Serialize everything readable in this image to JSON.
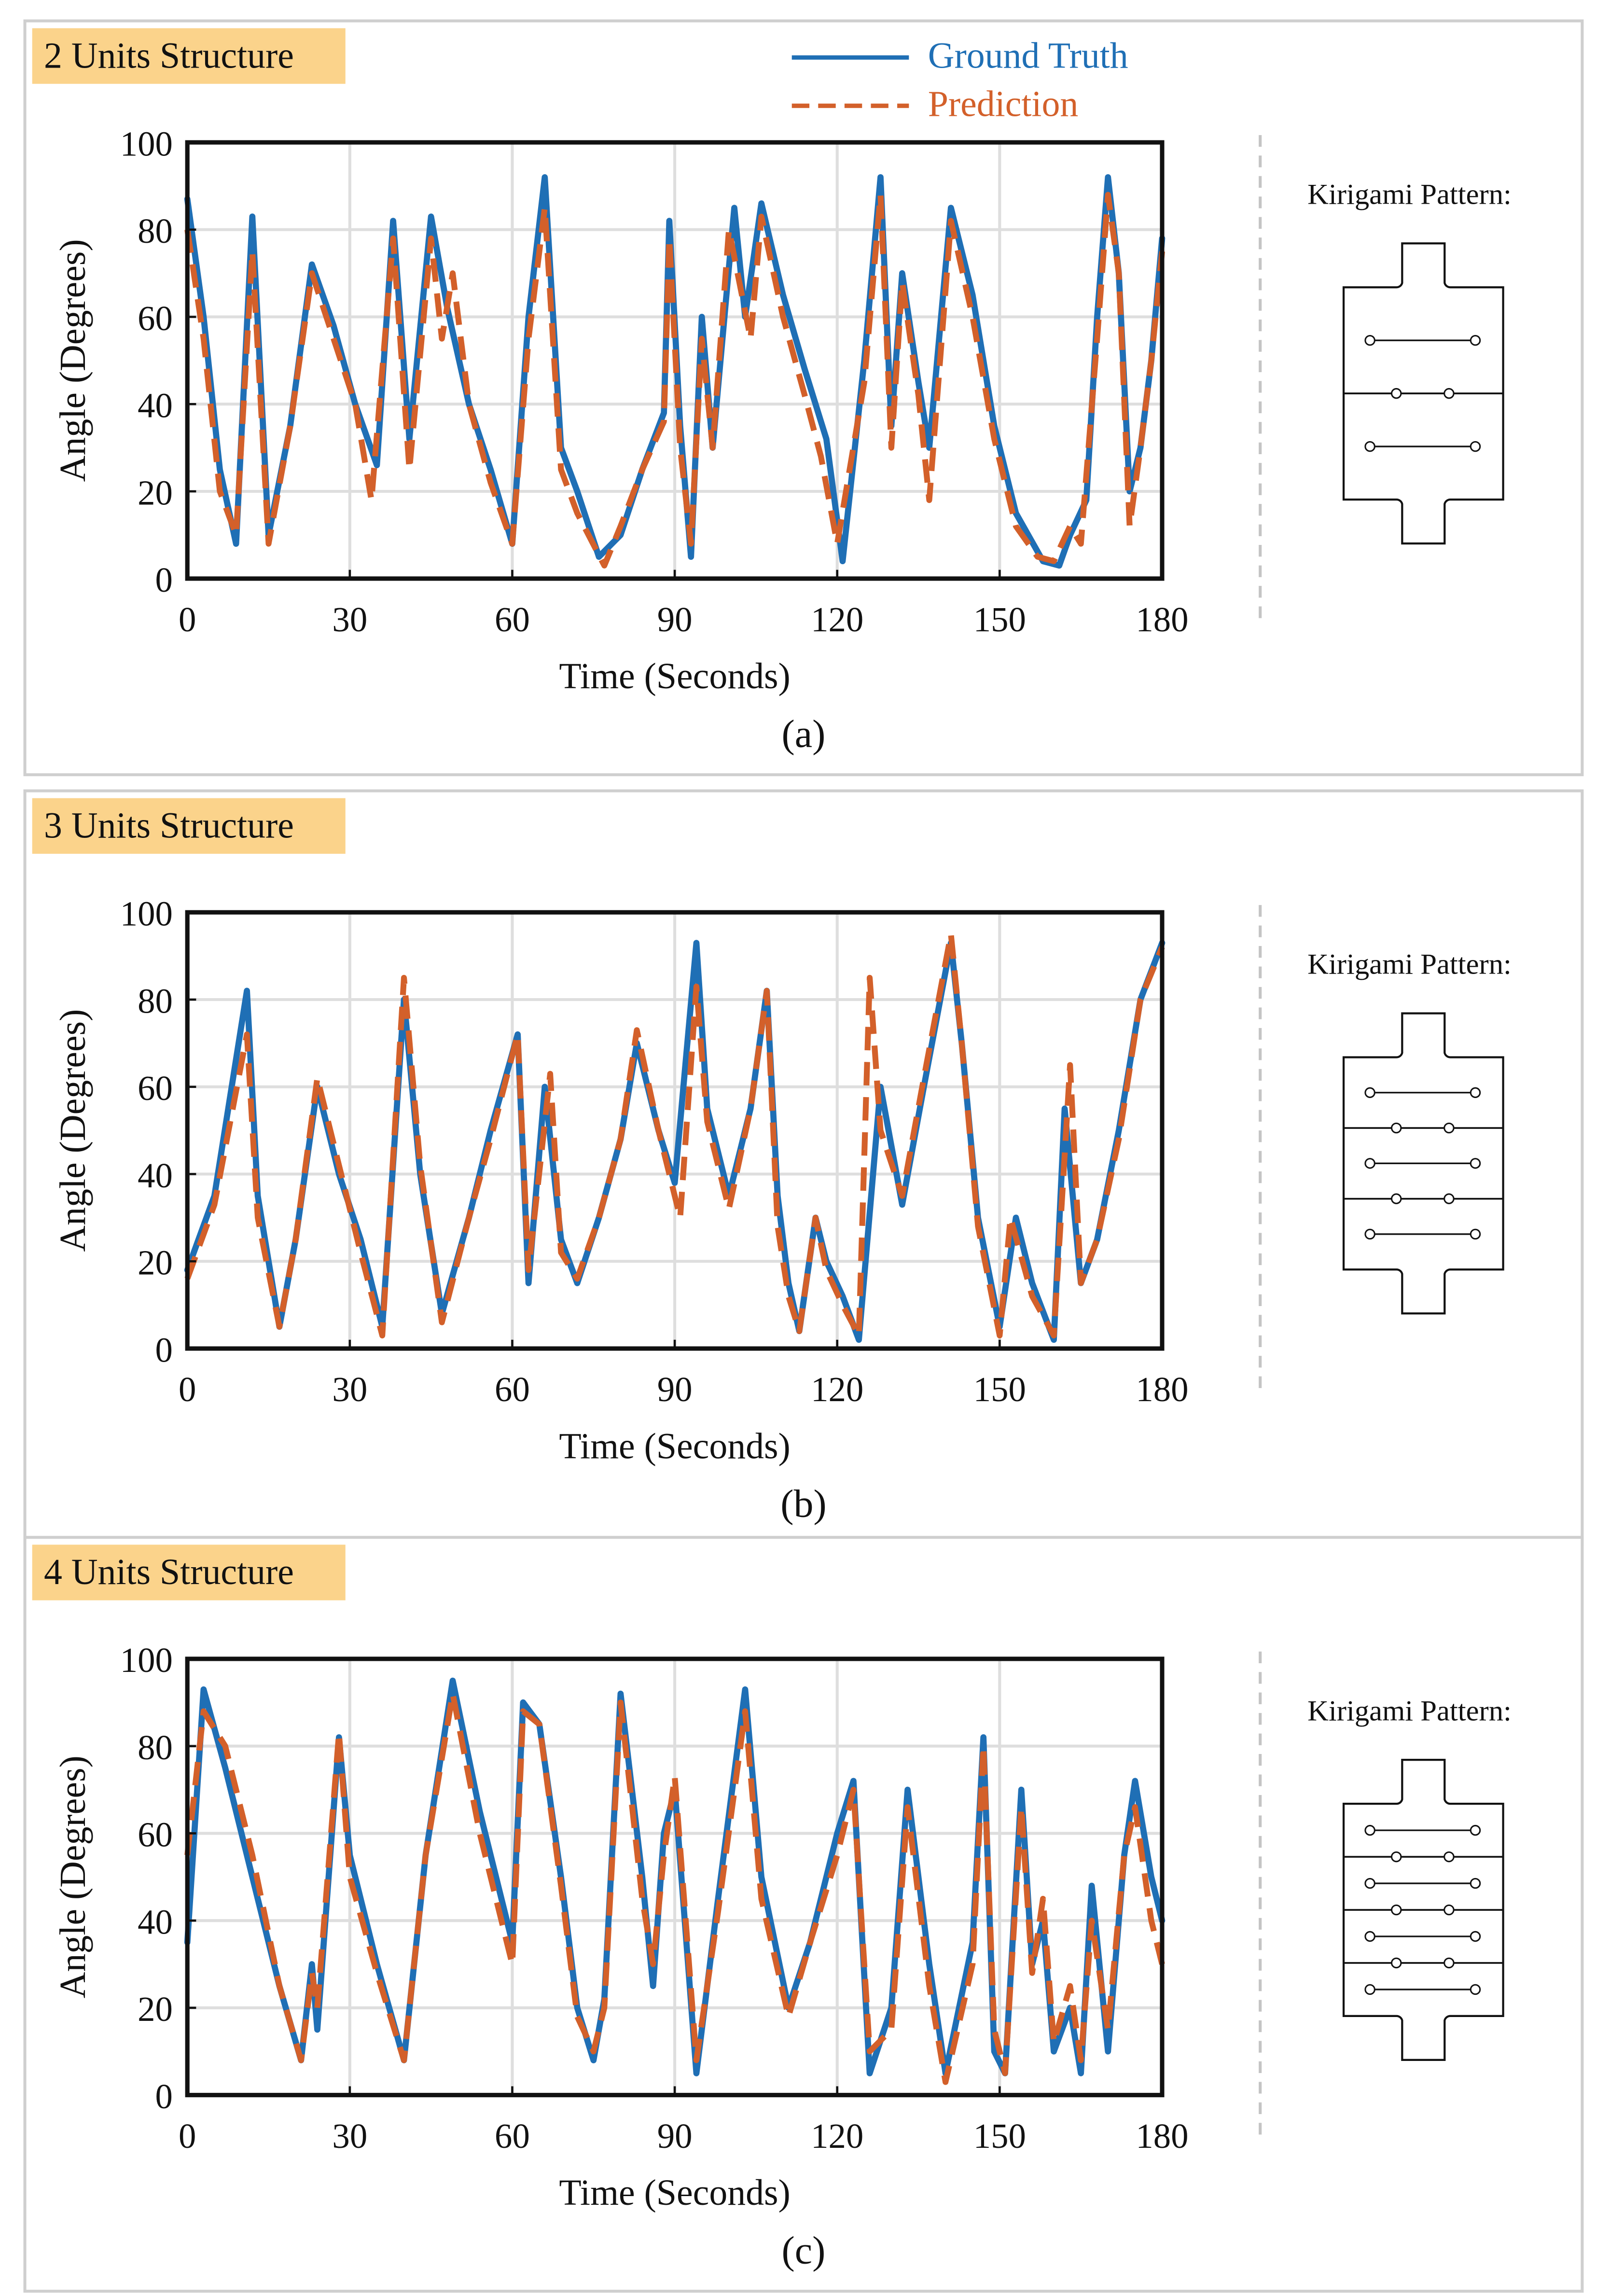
{
  "legend": {
    "ground_truth": "Ground Truth",
    "prediction": "Prediction",
    "ground_truth_color": "#1f6fb5",
    "prediction_color": "#d3602a"
  },
  "kirigami_label": "Kirigami Pattern:",
  "colors": {
    "tag_bg": "#fbd38b",
    "panel_border": "#cfcfcf",
    "grid": "#dedede"
  },
  "chart_data": [
    {
      "type": "line",
      "title": "2 Units Structure",
      "caption": "(a)",
      "xlabel": "Time (Seconds)",
      "ylabel": "Angle (Degrees)",
      "xlim": [
        0,
        180
      ],
      "ylim": [
        0,
        100
      ],
      "xticks": [
        0,
        30,
        60,
        90,
        120,
        150,
        180
      ],
      "yticks": [
        0,
        20,
        40,
        60,
        80,
        100
      ],
      "units": 2,
      "series": [
        {
          "name": "Ground Truth",
          "x": [
            0,
            3,
            6,
            9,
            12,
            15,
            19,
            23,
            27,
            31,
            35,
            38,
            41,
            45,
            48,
            52,
            56,
            60,
            63,
            66,
            69,
            72,
            76,
            80,
            84,
            88,
            89,
            91,
            93,
            95,
            97,
            101,
            103,
            106,
            110,
            114,
            118,
            121,
            125,
            128,
            130,
            132,
            135,
            137,
            141,
            145,
            149,
            153,
            158,
            161,
            163,
            166,
            168,
            170,
            172,
            174,
            176,
            178,
            180
          ],
          "y": [
            87,
            60,
            25,
            8,
            83,
            10,
            35,
            72,
            58,
            40,
            26,
            82,
            32,
            83,
            62,
            40,
            25,
            8,
            60,
            92,
            30,
            20,
            5,
            10,
            25,
            38,
            82,
            35,
            5,
            60,
            30,
            85,
            60,
            86,
            65,
            48,
            32,
            4,
            50,
            92,
            35,
            70,
            45,
            30,
            85,
            65,
            35,
            15,
            4,
            3,
            10,
            18,
            60,
            92,
            70,
            20,
            30,
            50,
            78
          ]
        },
        {
          "name": "Prediction",
          "x": [
            0,
            3,
            6,
            9,
            12,
            15,
            19,
            23,
            27,
            31,
            34,
            38,
            41,
            45,
            47,
            49,
            52,
            56,
            60,
            63,
            66,
            69,
            72,
            77,
            80,
            84,
            88,
            89,
            91,
            93,
            95,
            97,
            100,
            104,
            106,
            110,
            114,
            117,
            120,
            125,
            128,
            130,
            132,
            135,
            137,
            141,
            145,
            149,
            153,
            157,
            160,
            163,
            165,
            168,
            170,
            172,
            174,
            176,
            178,
            180
          ],
          "y": [
            80,
            55,
            20,
            10,
            75,
            8,
            35,
            70,
            55,
            40,
            18,
            78,
            25,
            78,
            55,
            70,
            40,
            22,
            8,
            55,
            85,
            25,
            15,
            3,
            12,
            25,
            36,
            78,
            30,
            8,
            55,
            30,
            80,
            55,
            83,
            60,
            42,
            28,
            8,
            45,
            88,
            30,
            68,
            42,
            18,
            82,
            60,
            32,
            12,
            5,
            4,
            12,
            8,
            55,
            88,
            70,
            12,
            30,
            50,
            75
          ]
        }
      ]
    },
    {
      "type": "line",
      "title": "3 Units Structure",
      "caption": "(b)",
      "xlabel": "Time (Seconds)",
      "ylabel": "Angle (Degrees)",
      "xlim": [
        0,
        180
      ],
      "ylim": [
        0,
        100
      ],
      "xticks": [
        0,
        30,
        60,
        90,
        120,
        150,
        180
      ],
      "yticks": [
        0,
        20,
        40,
        60,
        80,
        100
      ],
      "units": 3,
      "series": [
        {
          "name": "Ground Truth",
          "x": [
            0,
            5,
            11,
            13,
            17,
            20,
            24,
            28,
            32,
            36,
            40,
            43,
            47,
            52,
            56,
            61,
            63,
            66,
            69,
            72,
            76,
            80,
            83,
            87,
            90,
            94,
            96,
            100,
            104,
            107,
            109,
            111,
            113,
            116,
            118,
            121,
            124,
            128,
            132,
            136,
            141,
            143,
            146,
            150,
            153,
            156,
            160,
            162,
            165,
            168,
            172,
            176,
            180
          ],
          "y": [
            18,
            35,
            82,
            35,
            5,
            25,
            60,
            40,
            25,
            5,
            80,
            40,
            8,
            30,
            50,
            72,
            15,
            60,
            25,
            15,
            30,
            48,
            70,
            50,
            38,
            93,
            55,
            35,
            55,
            82,
            35,
            15,
            4,
            30,
            20,
            12,
            2,
            60,
            33,
            60,
            93,
            70,
            30,
            5,
            30,
            15,
            2,
            55,
            15,
            25,
            50,
            80,
            93
          ]
        },
        {
          "name": "Prediction",
          "x": [
            0,
            5,
            11,
            13,
            17,
            20,
            24,
            28,
            32,
            36,
            40,
            43,
            47,
            52,
            56,
            61,
            63,
            67,
            69,
            72,
            76,
            80,
            83,
            87,
            91,
            94,
            96,
            100,
            104,
            107,
            109,
            111,
            113,
            116,
            118,
            121,
            124,
            126,
            128,
            132,
            136,
            141,
            143,
            146,
            150,
            152,
            156,
            160,
            163,
            165,
            168,
            172,
            176,
            180
          ],
          "y": [
            16,
            33,
            72,
            30,
            5,
            25,
            62,
            42,
            22,
            3,
            85,
            42,
            6,
            30,
            48,
            72,
            18,
            63,
            22,
            16,
            30,
            48,
            73,
            50,
            30,
            83,
            52,
            32,
            55,
            82,
            28,
            12,
            4,
            30,
            18,
            10,
            3,
            85,
            50,
            35,
            62,
            95,
            70,
            28,
            3,
            30,
            12,
            3,
            65,
            15,
            25,
            48,
            80,
            92
          ]
        }
      ]
    },
    {
      "type": "line",
      "title": "4 Units Structure",
      "caption": "(c)",
      "xlabel": "Time (Seconds)",
      "ylabel": "Angle (Degrees)",
      "xlim": [
        0,
        180
      ],
      "ylim": [
        0,
        100
      ],
      "xticks": [
        0,
        30,
        60,
        90,
        120,
        150,
        180
      ],
      "yticks": [
        0,
        20,
        40,
        60,
        80,
        100
      ],
      "units": 4,
      "series": [
        {
          "name": "Ground Truth",
          "x": [
            0,
            3,
            7,
            12,
            17,
            21,
            23,
            24,
            28,
            30,
            35,
            40,
            44,
            49,
            54,
            60,
            62,
            65,
            69,
            72,
            75,
            77,
            80,
            84,
            86,
            88,
            90,
            94,
            98,
            103,
            106,
            111,
            115,
            120,
            123,
            126,
            130,
            133,
            137,
            140,
            145,
            147,
            149,
            151,
            154,
            156,
            158,
            160,
            163,
            165,
            167,
            170,
            173,
            175,
            178,
            180
          ],
          "y": [
            35,
            93,
            75,
            50,
            25,
            8,
            30,
            15,
            82,
            55,
            30,
            8,
            55,
            95,
            65,
            35,
            90,
            85,
            50,
            20,
            8,
            22,
            92,
            50,
            25,
            60,
            70,
            5,
            45,
            93,
            50,
            20,
            35,
            60,
            72,
            5,
            20,
            70,
            30,
            5,
            35,
            82,
            10,
            5,
            70,
            30,
            40,
            10,
            20,
            5,
            48,
            10,
            55,
            72,
            50,
            40
          ]
        },
        {
          "name": "Prediction",
          "x": [
            0,
            3,
            7,
            12,
            17,
            21,
            23,
            24,
            28,
            30,
            35,
            40,
            44,
            49,
            54,
            60,
            62,
            65,
            69,
            72,
            75,
            77,
            80,
            84,
            86,
            88,
            90,
            94,
            98,
            103,
            106,
            111,
            115,
            120,
            123,
            126,
            130,
            133,
            137,
            140,
            145,
            147,
            149,
            151,
            154,
            156,
            158,
            160,
            163,
            165,
            167,
            170,
            173,
            175,
            178,
            180
          ],
          "y": [
            55,
            88,
            80,
            55,
            25,
            8,
            28,
            20,
            83,
            50,
            28,
            8,
            55,
            92,
            60,
            30,
            88,
            85,
            48,
            18,
            10,
            20,
            90,
            45,
            30,
            55,
            73,
            8,
            42,
            88,
            45,
            18,
            35,
            55,
            70,
            10,
            15,
            66,
            25,
            3,
            30,
            80,
            15,
            5,
            66,
            28,
            45,
            12,
            25,
            8,
            40,
            15,
            55,
            66,
            40,
            30
          ]
        }
      ]
    }
  ]
}
